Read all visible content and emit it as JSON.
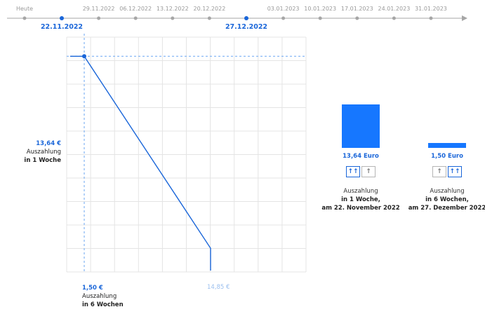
{
  "timeline": {
    "today_label": "Heute",
    "dates": [
      "22.11.2022",
      "29.11.2022",
      "06.12.2022",
      "13.12.2022",
      "20.12.2022",
      "27.12.2022",
      "03.01.2023",
      "10.01.2023",
      "17.01.2023",
      "24.01.2023",
      "31.01.2023"
    ],
    "selected_start": "22.11.2022",
    "selected_end": "27.12.2022",
    "colors": {
      "line": "#a6a6a6",
      "dot": "#a6a6a6",
      "selected": "#1a66d9"
    }
  },
  "chart_data": {
    "type": "line",
    "x": [
      "22.11.2022",
      "27.12.2022"
    ],
    "series": [
      {
        "values": [
          13.64,
          1.5
        ]
      }
    ],
    "end_marker_value": 14.85,
    "grid": true
  },
  "left_axis": {
    "top_value": "13,64 €",
    "top_line1": "Auszahlung",
    "top_line2": "in 1 Woche"
  },
  "bottom_axis": {
    "value": "1,50 €",
    "line1": "Auszahlung",
    "line2": "in 6 Wochen",
    "right_value": "14,85 €"
  },
  "options": [
    {
      "value_label": "13,64 Euro",
      "level": 1.0,
      "button_1": "↑↑",
      "button_2": "↑",
      "desc_line1": "Auszahlung",
      "desc_line2": "in 1 Woche,",
      "desc_line3": "am 22. November 2022"
    },
    {
      "value_label": "1,50 Euro",
      "level": 0.11,
      "button_1": "↑",
      "button_2": "↑↑",
      "desc_line1": "Auszahlung",
      "desc_line2": "in 6 Wochen,",
      "desc_line3": "am 27. Dezember 2022"
    }
  ],
  "accent_color": "#1677ff"
}
